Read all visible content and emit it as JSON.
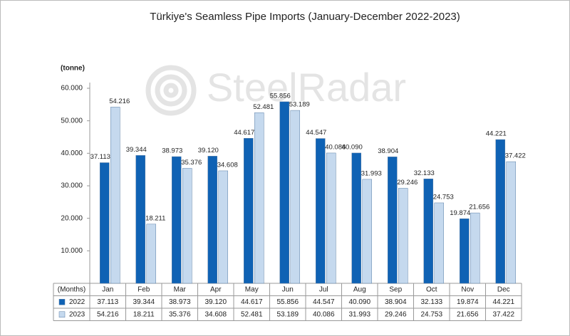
{
  "chart_data": {
    "type": "bar",
    "title": "Türkiye's Seamless Pipe Imports (January-December 2022-2023)",
    "watermark": "SteelRadar",
    "y_label": "(tonne)",
    "x_label": "(Months)",
    "categories": [
      "Jan",
      "Feb",
      "Mar",
      "Apr",
      "May",
      "Jun",
      "Jul",
      "Aug",
      "Sep",
      "Oct",
      "Nov",
      "Dec"
    ],
    "series": [
      {
        "name": "2022",
        "color": "#0f62b4",
        "values": [
          37113,
          39344,
          38973,
          39120,
          44617,
          55856,
          44547,
          40090,
          38904,
          32133,
          19874,
          44221
        ],
        "value_labels": [
          "37.113",
          "39.344",
          "38.973",
          "39.120",
          "44.617",
          "55.856",
          "44.547",
          "40.090",
          "38.904",
          "32.133",
          "19.874",
          "44.221"
        ]
      },
      {
        "name": "2023",
        "color": "#c5d9ee",
        "values": [
          54216,
          18211,
          35376,
          34608,
          52481,
          53189,
          40086,
          31993,
          29246,
          24753,
          21656,
          37422
        ],
        "value_labels": [
          "54.216",
          "18.211",
          "35.376",
          "34.608",
          "52.481",
          "53.189",
          "40.086",
          "31.993",
          "29.246",
          "24.753",
          "21.656",
          "37.422"
        ]
      }
    ],
    "ylim": [
      0,
      60000
    ],
    "yticks": [
      {
        "value": 10000,
        "label": "10.000"
      },
      {
        "value": 20000,
        "label": "20.000"
      },
      {
        "value": 30000,
        "label": "30.000"
      },
      {
        "value": 40000,
        "label": "40.000"
      },
      {
        "value": 50000,
        "label": "50.000"
      },
      {
        "value": 60000,
        "label": "60.000"
      }
    ],
    "grid": false
  }
}
